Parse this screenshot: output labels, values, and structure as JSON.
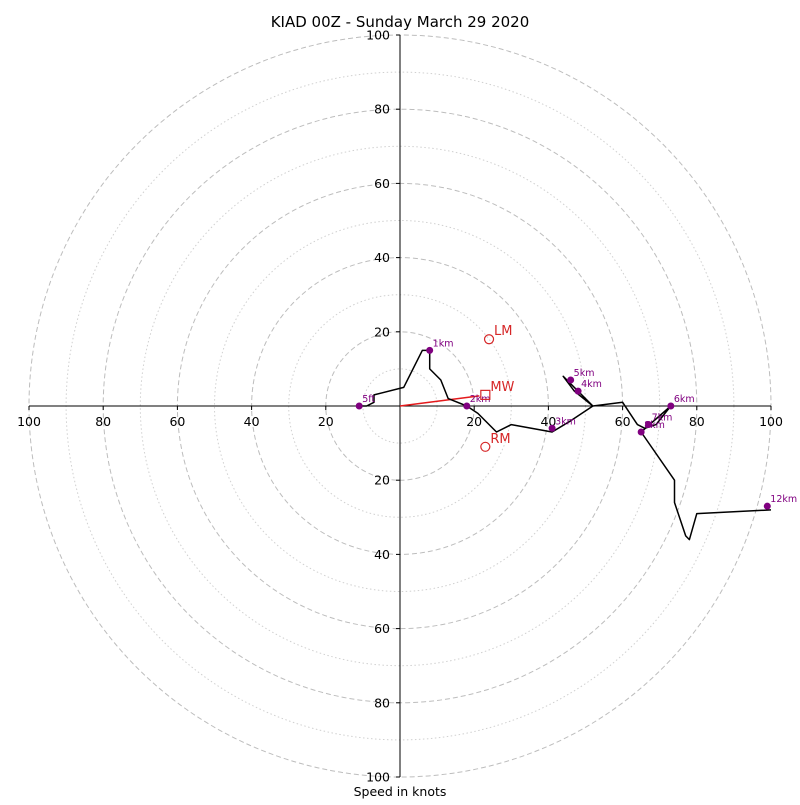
{
  "chart_data": {
    "type": "hodograph",
    "title": "KIAD 00Z - Sunday March 29 2020",
    "xlabel": "Speed in knots",
    "max_speed": 100,
    "major_rings": [
      20,
      40,
      60,
      80,
      100
    ],
    "minor_rings": [
      10,
      30,
      50,
      70,
      90
    ],
    "x_tick_labels": [
      "100",
      "80",
      "60",
      "40",
      "20",
      "",
      "20",
      "40",
      "60",
      "80",
      "100"
    ],
    "y_tick_labels": [
      "100",
      "80",
      "60",
      "40",
      "20",
      "",
      "20",
      "40",
      "60",
      "80",
      "100"
    ],
    "grid": true,
    "hodograph_trace": [
      [
        -11,
        0
      ],
      [
        -9,
        0
      ],
      [
        -7,
        1
      ],
      [
        -7,
        3
      ],
      [
        1,
        5
      ],
      [
        6,
        15
      ],
      [
        8,
        15
      ],
      [
        8,
        10
      ],
      [
        11,
        7
      ],
      [
        13,
        2
      ],
      [
        18,
        0
      ],
      [
        21,
        -2
      ],
      [
        26,
        -7
      ],
      [
        30,
        -5
      ],
      [
        41,
        -7
      ],
      [
        46,
        -4
      ],
      [
        49,
        -2
      ],
      [
        52,
        0
      ],
      [
        47,
        4
      ],
      [
        44,
        8
      ],
      [
        48,
        4
      ],
      [
        52,
        0
      ],
      [
        60,
        1
      ],
      [
        64,
        -5
      ],
      [
        66,
        -6
      ],
      [
        69,
        -5
      ],
      [
        73,
        0
      ],
      [
        65,
        -7
      ],
      [
        74,
        -20
      ],
      [
        74,
        -26
      ],
      [
        77,
        -35
      ],
      [
        78,
        -36
      ],
      [
        80,
        -29
      ],
      [
        100,
        -28
      ]
    ],
    "height_markers": [
      {
        "label": "5ft",
        "u": -11,
        "v": 0
      },
      {
        "label": "1km",
        "u": 8,
        "v": 15
      },
      {
        "label": "2km",
        "u": 18,
        "v": 0
      },
      {
        "label": "3km",
        "u": 41,
        "v": -6
      },
      {
        "label": "4km",
        "u": 48,
        "v": 4
      },
      {
        "label": "5km",
        "u": 46,
        "v": 7
      },
      {
        "label": "6km",
        "u": 73,
        "v": 0
      },
      {
        "label": "7km",
        "u": 67,
        "v": -5
      },
      {
        "label": "8km",
        "u": 65,
        "v": -7
      },
      {
        "label": "12km",
        "u": 99,
        "v": -27
      }
    ],
    "storm_motion": [
      {
        "label": "LM",
        "u": 24,
        "v": 18,
        "marker": "circle"
      },
      {
        "label": "MW",
        "u": 23,
        "v": 3,
        "marker": "square"
      },
      {
        "label": "RM",
        "u": 23,
        "v": -11,
        "marker": "circle"
      }
    ],
    "shear_vector": {
      "from": [
        0,
        0
      ],
      "to": [
        23,
        3
      ],
      "color": "#e41a1c"
    },
    "colors": {
      "trace": "#000000",
      "height_marker": "#800080",
      "storm_motion": "#d62728",
      "grid": "#bdbdbd"
    }
  }
}
